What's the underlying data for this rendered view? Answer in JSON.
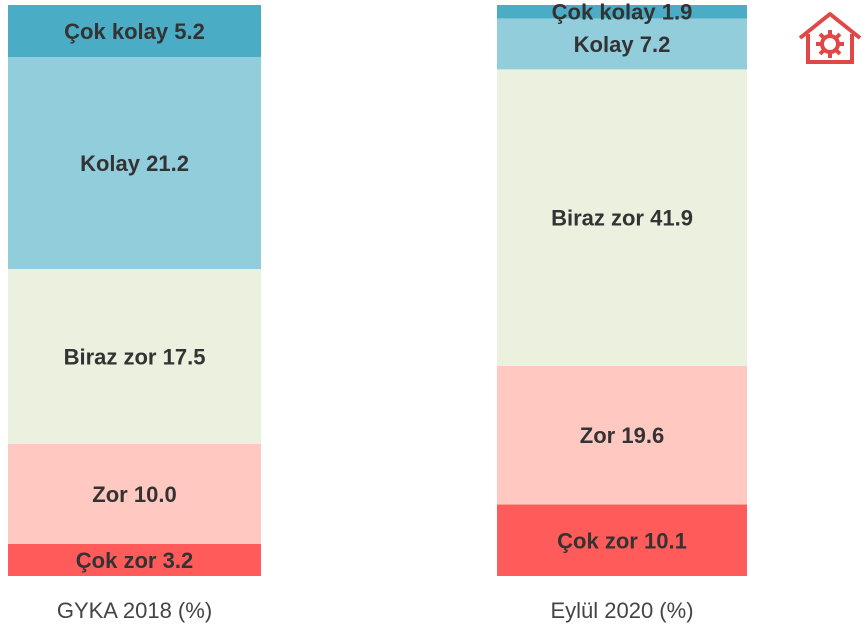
{
  "chart_data": {
    "type": "stacked_bar",
    "categories": [
      "GYKA 2018 (%)",
      "Eylül 2020 (%)"
    ],
    "series": [
      {
        "name": "Çok zor",
        "color": "#ff5b5b",
        "values": [
          3.2,
          10.1
        ],
        "value_labels": [
          "3.2",
          "10.1"
        ]
      },
      {
        "name": "Zor",
        "color": "#ffc9c1",
        "values": [
          10.0,
          19.6
        ],
        "value_labels": [
          "10.0",
          "19.6"
        ]
      },
      {
        "name": "Biraz zor",
        "color": "#ebf1de",
        "values": [
          17.5,
          41.9
        ],
        "value_labels": [
          "17.5",
          "41.9"
        ]
      },
      {
        "name": "Kolay",
        "color": "#92cddc",
        "values": [
          21.2,
          7.2
        ],
        "value_labels": [
          "21.2",
          "7.2"
        ]
      },
      {
        "name": "Çok kolay",
        "color": "#4bacc6",
        "values": [
          5.2,
          1.9
        ],
        "value_labels": [
          "5.2",
          "1.9"
        ]
      }
    ]
  }
}
